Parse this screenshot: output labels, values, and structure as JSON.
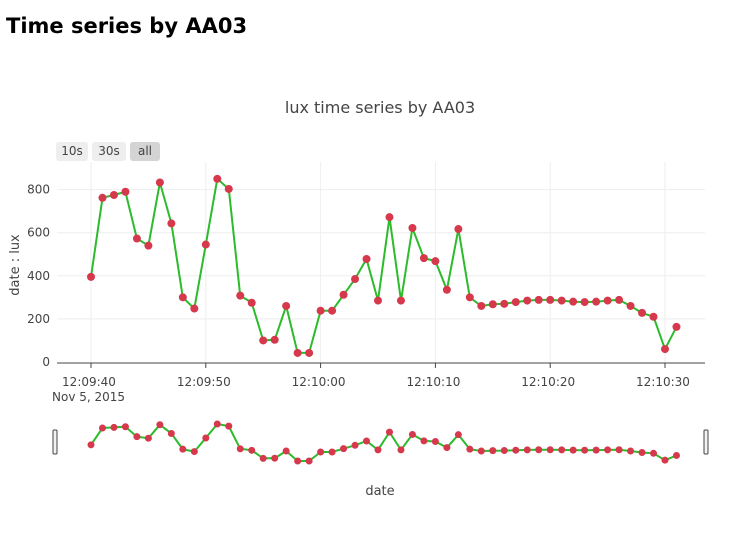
{
  "page": {
    "title": "Time series by AA03"
  },
  "range_selector": {
    "buttons": [
      "10s",
      "30s",
      "all"
    ],
    "active": "all"
  },
  "colors": {
    "line": "#2bbb2b",
    "marker": "#d6384c",
    "grid": "#eeeeee"
  },
  "chart_data": {
    "type": "line",
    "title": "lux time series by AA03",
    "xlabel": "date",
    "ylabel": "date : lux",
    "x_date": "Nov 5, 2015",
    "x_start": "12:09:40",
    "x_step_seconds": 1,
    "x_tick_labels": [
      "12:09:40",
      "12:09:50",
      "12:10:00",
      "12:10:10",
      "12:10:20",
      "12:10:30"
    ],
    "y_tick_labels": [
      "0",
      "200",
      "400",
      "600",
      "800"
    ],
    "ylim": [
      0,
      900
    ],
    "grid": true,
    "rangeslider": true,
    "series": [
      {
        "values": [
          395,
          762,
          775,
          790,
          573,
          540,
          833,
          643,
          300,
          248,
          545,
          850,
          803,
          308,
          275,
          100,
          103,
          260,
          42,
          42,
          238,
          238,
          312,
          385,
          478,
          285,
          672,
          285,
          622,
          482,
          468,
          335,
          617,
          300,
          260,
          268,
          270,
          278,
          285,
          288,
          288,
          285,
          280,
          278,
          280,
          285,
          288,
          260,
          228,
          210,
          60,
          163
        ]
      }
    ]
  }
}
